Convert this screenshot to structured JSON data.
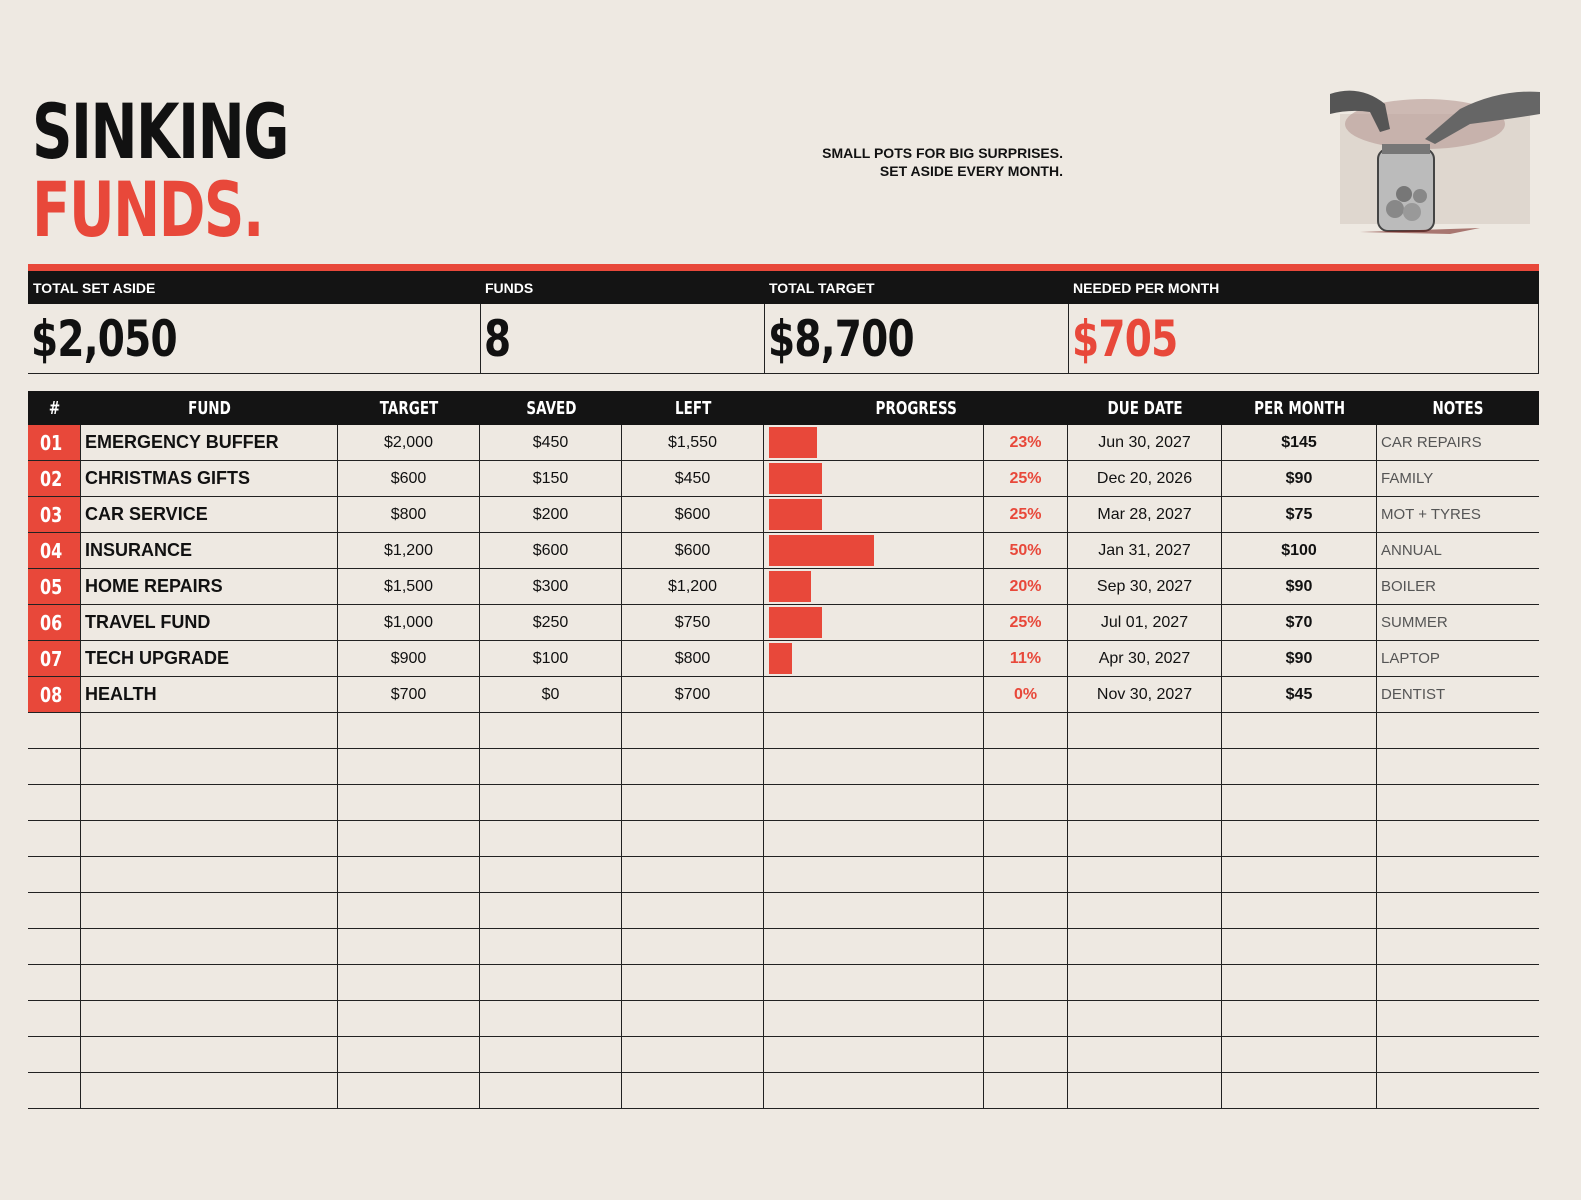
{
  "header": {
    "title_line1": "SINKING",
    "title_line2": "FUNDS.",
    "tagline_line1": "SMALL POTS FOR BIG SURPRISES.",
    "tagline_line2": "SET ASIDE EVERY MONTH."
  },
  "summary": [
    {
      "label": "TOTAL SET ASIDE",
      "value": "$2,050"
    },
    {
      "label": "FUNDS",
      "value": "8"
    },
    {
      "label": "TOTAL TARGET",
      "value": "$8,700"
    },
    {
      "label": "NEEDED PER MONTH",
      "value": "$705"
    }
  ],
  "table": {
    "columns": [
      "#",
      "FUND",
      "TARGET",
      "SAVED",
      "LEFT",
      "PROGRESS",
      "DUE DATE",
      "PER MONTH",
      "NOTES"
    ],
    "rows": [
      {
        "num": "01",
        "fund": "EMERGENCY BUFFER",
        "target": "$2,000",
        "saved": "$450",
        "left": "$1,550",
        "progress": 23,
        "progress_label": "23%",
        "due": "Jun 30, 2027",
        "per_month": "$145",
        "notes": "CAR REPAIRS"
      },
      {
        "num": "02",
        "fund": "CHRISTMAS GIFTS",
        "target": "$600",
        "saved": "$150",
        "left": "$450",
        "progress": 25,
        "progress_label": "25%",
        "due": "Dec 20, 2026",
        "per_month": "$90",
        "notes": "FAMILY"
      },
      {
        "num": "03",
        "fund": "CAR SERVICE",
        "target": "$800",
        "saved": "$200",
        "left": "$600",
        "progress": 25,
        "progress_label": "25%",
        "due": "Mar 28, 2027",
        "per_month": "$75",
        "notes": "MOT + TYRES"
      },
      {
        "num": "04",
        "fund": "INSURANCE",
        "target": "$1,200",
        "saved": "$600",
        "left": "$600",
        "progress": 50,
        "progress_label": "50%",
        "due": "Jan 31, 2027",
        "per_month": "$100",
        "notes": "ANNUAL"
      },
      {
        "num": "05",
        "fund": "HOME REPAIRS",
        "target": "$1,500",
        "saved": "$300",
        "left": "$1,200",
        "progress": 20,
        "progress_label": "20%",
        "due": "Sep 30, 2027",
        "per_month": "$90",
        "notes": "BOILER"
      },
      {
        "num": "06",
        "fund": "TRAVEL FUND",
        "target": "$1,000",
        "saved": "$250",
        "left": "$750",
        "progress": 25,
        "progress_label": "25%",
        "due": "Jul 01, 2027",
        "per_month": "$70",
        "notes": "SUMMER"
      },
      {
        "num": "07",
        "fund": "TECH UPGRADE",
        "target": "$900",
        "saved": "$100",
        "left": "$800",
        "progress": 11,
        "progress_label": "11%",
        "due": "Apr 30, 2027",
        "per_month": "$90",
        "notes": "LAPTOP"
      },
      {
        "num": "08",
        "fund": "HEALTH",
        "target": "$700",
        "saved": "$0",
        "left": "$700",
        "progress": 0,
        "progress_label": "0%",
        "due": "Nov 30, 2027",
        "per_month": "$45",
        "notes": "DENTIST"
      }
    ]
  }
}
